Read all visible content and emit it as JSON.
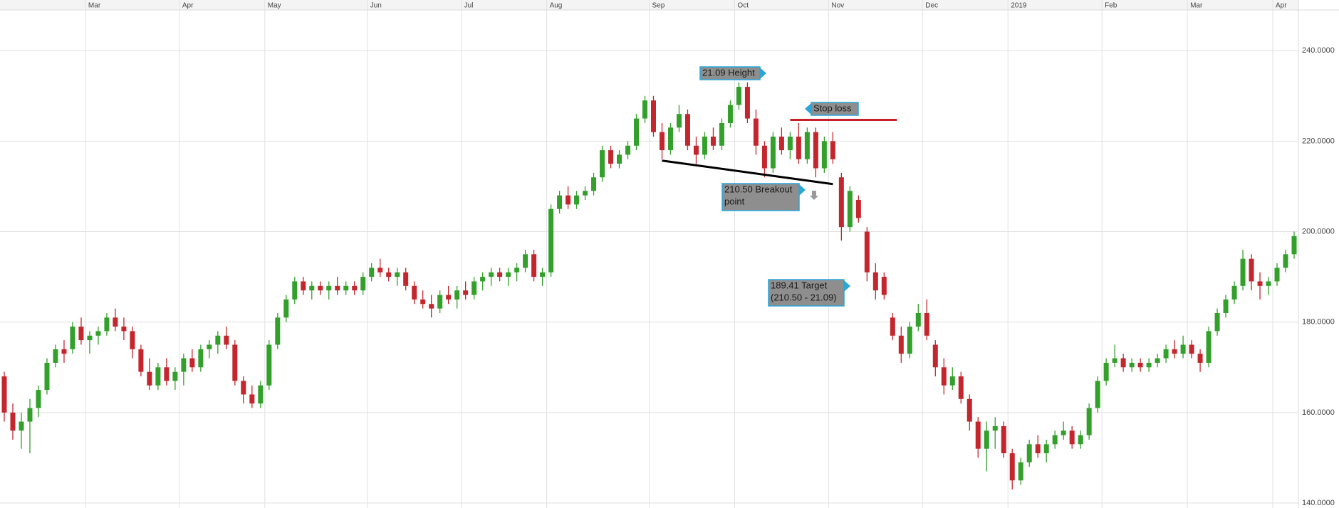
{
  "chart_data": {
    "type": "candlestick",
    "categories": [
      null,
      null,
      null,
      null,
      null,
      null,
      null,
      null,
      null,
      null,
      "Mar",
      null,
      null,
      null,
      null,
      null,
      null,
      null,
      null,
      null,
      null,
      "Apr",
      null,
      null,
      null,
      null,
      null,
      null,
      null,
      null,
      null,
      "May",
      null,
      null,
      null,
      null,
      null,
      null,
      null,
      null,
      null,
      null,
      null,
      "Jun",
      null,
      null,
      null,
      null,
      null,
      null,
      null,
      null,
      null,
      null,
      "Jul",
      null,
      null,
      null,
      null,
      null,
      null,
      null,
      null,
      null,
      "Aug",
      null,
      null,
      null,
      null,
      null,
      null,
      null,
      null,
      null,
      null,
      null,
      "Sep",
      null,
      null,
      null,
      null,
      null,
      null,
      null,
      null,
      null,
      "Oct",
      null,
      null,
      null,
      null,
      null,
      null,
      null,
      null,
      null,
      null,
      "Nov",
      null,
      null,
      null,
      null,
      null,
      null,
      null,
      null,
      null,
      null,
      "Dec",
      null,
      null,
      null,
      null,
      null,
      null,
      null,
      null,
      null,
      "2019",
      null,
      null,
      null,
      null,
      null,
      null,
      null,
      null,
      null,
      null,
      "Feb",
      null,
      null,
      null,
      null,
      null,
      null,
      null,
      null,
      null,
      "Mar",
      null,
      null,
      null,
      null,
      null,
      null,
      null,
      null,
      null,
      "Apr",
      null,
      null
    ],
    "ohlc": [
      [
        168,
        169,
        158,
        160
      ],
      [
        160,
        162,
        154,
        156
      ],
      [
        156,
        160,
        152,
        158
      ],
      [
        158,
        163,
        151,
        161
      ],
      [
        161,
        166,
        159,
        165
      ],
      [
        165,
        172,
        164,
        171
      ],
      [
        171,
        175,
        170,
        174
      ],
      [
        174,
        176,
        171,
        173
      ],
      [
        174,
        180,
        173,
        179
      ],
      [
        179,
        181,
        175,
        176
      ],
      [
        176,
        178,
        173,
        177
      ],
      [
        177,
        179,
        175,
        178
      ],
      [
        178,
        182,
        177,
        181
      ],
      [
        181,
        183,
        178,
        179
      ],
      [
        179,
        181,
        176,
        178
      ],
      [
        178,
        179,
        172,
        174
      ],
      [
        174,
        175,
        168,
        169
      ],
      [
        169,
        172,
        165,
        166
      ],
      [
        166,
        171,
        165,
        170
      ],
      [
        170,
        172,
        166,
        167
      ],
      [
        167,
        170,
        165,
        169
      ],
      [
        169,
        173,
        166,
        172
      ],
      [
        172,
        174,
        169,
        170
      ],
      [
        170,
        175,
        169,
        174
      ],
      [
        174,
        176,
        172,
        175
      ],
      [
        175,
        178,
        173,
        177
      ],
      [
        177,
        179,
        174,
        175
      ],
      [
        175,
        176,
        166,
        167
      ],
      [
        167,
        168,
        162,
        164
      ],
      [
        164,
        166,
        161,
        162
      ],
      [
        162,
        167,
        161,
        166
      ],
      [
        166,
        176,
        165,
        175
      ],
      [
        175,
        182,
        174,
        181
      ],
      [
        181,
        186,
        180,
        185
      ],
      [
        185,
        190,
        184,
        189
      ],
      [
        189,
        190,
        186,
        187
      ],
      [
        187,
        189,
        185,
        188
      ],
      [
        188,
        189,
        186,
        187
      ],
      [
        187,
        189,
        185,
        188
      ],
      [
        188,
        190,
        186,
        187
      ],
      [
        187,
        189,
        186,
        188
      ],
      [
        188,
        189,
        186,
        187
      ],
      [
        187,
        191,
        186,
        190
      ],
      [
        190,
        193,
        189,
        192
      ],
      [
        192,
        194,
        190,
        191
      ],
      [
        191,
        192,
        189,
        190
      ],
      [
        190,
        192,
        188,
        191
      ],
      [
        191,
        192,
        187,
        188
      ],
      [
        188,
        189,
        184,
        185
      ],
      [
        185,
        187,
        183,
        184
      ],
      [
        184,
        186,
        181,
        183
      ],
      [
        183,
        187,
        182,
        186
      ],
      [
        186,
        188,
        184,
        185
      ],
      [
        185,
        188,
        183,
        187
      ],
      [
        187,
        189,
        185,
        186
      ],
      [
        186,
        190,
        185,
        189
      ],
      [
        189,
        191,
        187,
        190
      ],
      [
        190,
        192,
        188,
        191
      ],
      [
        191,
        192,
        189,
        190
      ],
      [
        190,
        192,
        188,
        191
      ],
      [
        191,
        193,
        189,
        192
      ],
      [
        192,
        196,
        191,
        195
      ],
      [
        195,
        196,
        189,
        190
      ],
      [
        190,
        192,
        188,
        191
      ],
      [
        191,
        206,
        190,
        205
      ],
      [
        205,
        209,
        204,
        208
      ],
      [
        208,
        210,
        205,
        206
      ],
      [
        206,
        209,
        205,
        208
      ],
      [
        208,
        210,
        207,
        209
      ],
      [
        209,
        213,
        208,
        212
      ],
      [
        212,
        219,
        211,
        218
      ],
      [
        218,
        219,
        214,
        215
      ],
      [
        215,
        218,
        214,
        217
      ],
      [
        217,
        220,
        216,
        219
      ],
      [
        219,
        226,
        218,
        225
      ],
      [
        225,
        230,
        224,
        229
      ],
      [
        229,
        230,
        221,
        222
      ],
      [
        222,
        224,
        216,
        218
      ],
      [
        218,
        224,
        217,
        223
      ],
      [
        223,
        228,
        222,
        226
      ],
      [
        226,
        227,
        218,
        219
      ],
      [
        219,
        221,
        215,
        217
      ],
      [
        217,
        222,
        216,
        221
      ],
      [
        221,
        223,
        218,
        219
      ],
      [
        219,
        225,
        218,
        224
      ],
      [
        224,
        229,
        223,
        228
      ],
      [
        228,
        233,
        227,
        232
      ],
      [
        232,
        233,
        224,
        225
      ],
      [
        225,
        227,
        217,
        219
      ],
      [
        219,
        220,
        212,
        214
      ],
      [
        214,
        222,
        213,
        221
      ],
      [
        221,
        223,
        217,
        218
      ],
      [
        218,
        222,
        216,
        221
      ],
      [
        221,
        224,
        215,
        216
      ],
      [
        216,
        223,
        215,
        222
      ],
      [
        222,
        223,
        212,
        214
      ],
      [
        214,
        221,
        213,
        220
      ],
      [
        220,
        222,
        215,
        216
      ],
      [
        212,
        213,
        198,
        201
      ],
      [
        201,
        210,
        200,
        209
      ],
      [
        207,
        208,
        202,
        203
      ],
      [
        200,
        201,
        189,
        191
      ],
      [
        191,
        193,
        185,
        187
      ],
      [
        190,
        191,
        185,
        186
      ],
      [
        181,
        182,
        176,
        177
      ],
      [
        177,
        179,
        171,
        173
      ],
      [
        173,
        180,
        172,
        179
      ],
      [
        179,
        184,
        178,
        182
      ],
      [
        182,
        185,
        176,
        177
      ],
      [
        175,
        176,
        168,
        170
      ],
      [
        170,
        172,
        164,
        166
      ],
      [
        166,
        170,
        165,
        168
      ],
      [
        168,
        169,
        162,
        163
      ],
      [
        163,
        164,
        156,
        158
      ],
      [
        158,
        159,
        150,
        152
      ],
      [
        152,
        158,
        147,
        156
      ],
      [
        156,
        159,
        152,
        157
      ],
      [
        157,
        158,
        150,
        151
      ],
      [
        151,
        152,
        143,
        145
      ],
      [
        145,
        150,
        144,
        149
      ],
      [
        149,
        154,
        148,
        153
      ],
      [
        153,
        155,
        150,
        151
      ],
      [
        151,
        154,
        149,
        153
      ],
      [
        153,
        156,
        152,
        155
      ],
      [
        155,
        158,
        154,
        156
      ],
      [
        156,
        157,
        152,
        153
      ],
      [
        153,
        156,
        152,
        155
      ],
      [
        155,
        162,
        154,
        161
      ],
      [
        161,
        168,
        160,
        167
      ],
      [
        167,
        172,
        166,
        171
      ],
      [
        171,
        175,
        170,
        172
      ],
      [
        172,
        173,
        169,
        170
      ],
      [
        170,
        172,
        169,
        171
      ],
      [
        171,
        172,
        169,
        170
      ],
      [
        170,
        172,
        169,
        171
      ],
      [
        171,
        173,
        170,
        172
      ],
      [
        172,
        175,
        171,
        174
      ],
      [
        174,
        176,
        172,
        173
      ],
      [
        173,
        177,
        172,
        175
      ],
      [
        175,
        176,
        172,
        173
      ],
      [
        173,
        174,
        169,
        171
      ],
      [
        171,
        179,
        170,
        178
      ],
      [
        178,
        183,
        177,
        182
      ],
      [
        182,
        186,
        181,
        185
      ],
      [
        185,
        189,
        184,
        188
      ],
      [
        188,
        196,
        187,
        194
      ],
      [
        194,
        195,
        187,
        189
      ],
      [
        189,
        191,
        185,
        188
      ],
      [
        188,
        190,
        186,
        189
      ],
      [
        189,
        193,
        188,
        192
      ],
      [
        192,
        196,
        191,
        195
      ],
      [
        195,
        200,
        194,
        199
      ]
    ],
    "up_color": "#33a02c",
    "down_color": "#c4262e",
    "ylim": [
      138.9,
      249
    ],
    "yticks": [
      {
        "value": 140,
        "label": "140.0000"
      },
      {
        "value": 160,
        "label": "160.0000"
      },
      {
        "value": 180,
        "label": "180.0000"
      },
      {
        "value": 200,
        "label": "200.0000"
      },
      {
        "value": 220,
        "label": "220.0000"
      },
      {
        "value": 240,
        "label": "240.0000"
      }
    ],
    "grid": true,
    "lines": [
      {
        "x": [
          77,
          97
        ],
        "values": [
          215.7,
          210.5
        ],
        "color": "#000000"
      },
      {
        "x": [
          92,
          104.5
        ],
        "values": [
          224.7,
          224.7
        ],
        "color": "#c8202a"
      }
    ],
    "annotations": [
      {
        "text": [
          "21.09 Height"
        ]
      },
      {
        "text": [
          "Stop loss"
        ]
      },
      {
        "text": [
          "210.50 Breakout",
          "point"
        ]
      },
      {
        "text": [
          "189.41 Target",
          "(210.50 - 21.09)"
        ]
      }
    ]
  }
}
